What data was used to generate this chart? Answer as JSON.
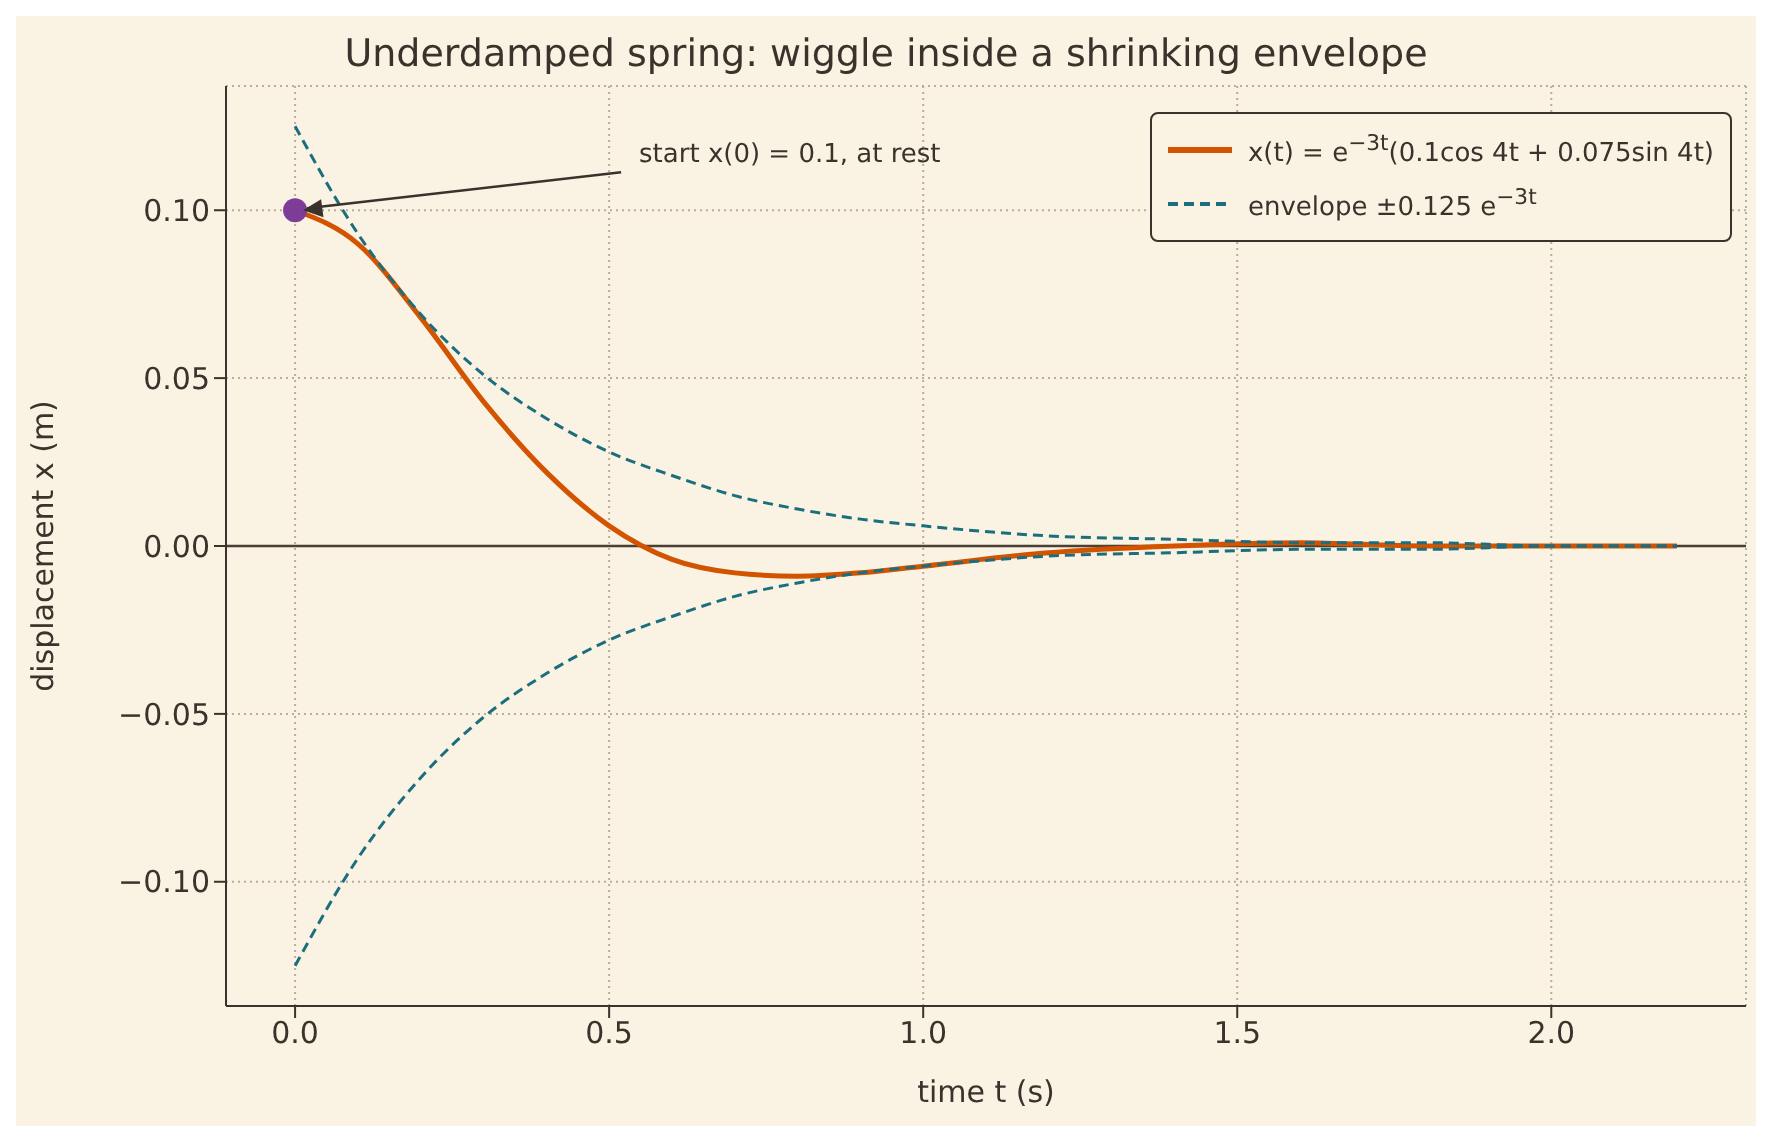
{
  "chart_data": {
    "type": "line",
    "title": "Underdamped spring: wiggle inside a shrinking envelope",
    "xlabel": "time  t  (s)",
    "ylabel": "displacement  x  (m)",
    "xlim": [
      -0.11,
      2.31
    ],
    "xticks": [
      {
        "value": 0,
        "label": "0.0"
      },
      {
        "value": 0.5,
        "label": "0.5"
      },
      {
        "value": 1,
        "label": "1.0"
      },
      {
        "value": 1.5,
        "label": "1.5"
      },
      {
        "value": 2,
        "label": "2.0"
      }
    ],
    "ylim": [
      -0.137,
      0.137
    ],
    "yticks": [
      {
        "value": -0.1,
        "label": "−0.10"
      },
      {
        "value": -0.05,
        "label": "−0.05"
      },
      {
        "value": 0,
        "label": "0.00"
      },
      {
        "value": 0.05,
        "label": "0.05"
      },
      {
        "value": 0.1,
        "label": "0.10"
      }
    ],
    "grid": true,
    "legend": "top right",
    "series": [
      {
        "name": "x(t) = e$^{−3t}$(0.1cos 4t + 0.075sin 4t)",
        "color": "#d35400",
        "line_style": "solid",
        "x": [
          0,
          0.1,
          0.2,
          0.3,
          0.4,
          0.5,
          0.6,
          0.7,
          0.8,
          0.9,
          1.0,
          1.2,
          1.4,
          1.6,
          1.8,
          2.0,
          2.2
        ],
        "values": [
          0.1,
          0.09,
          0.068,
          0.043,
          0.022,
          0.006,
          -0.004,
          -0.008,
          -0.009,
          -0.008,
          -0.006,
          -0.002,
          0.0,
          0.001,
          0.0,
          0.0,
          0.0
        ]
      },
      {
        "name": "envelope ±0.125 e$^{−3t}$",
        "color": "#1b6e7d",
        "line_style": "dashed",
        "x": [
          0,
          0.1,
          0.2,
          0.3,
          0.4,
          0.5,
          0.6,
          0.7,
          0.8,
          0.9,
          1.0,
          1.2,
          1.4,
          1.6,
          1.8,
          2.0,
          2.2
        ],
        "values": [
          0.125,
          0.093,
          0.069,
          0.051,
          0.038,
          0.028,
          0.021,
          0.015,
          0.011,
          0.008,
          0.006,
          0.003,
          0.002,
          0.001,
          0.001,
          0.0,
          0.0
        ]
      },
      {
        "color": "#1b6e7d",
        "line_style": "dashed",
        "x": [
          0,
          0.1,
          0.2,
          0.3,
          0.4,
          0.5,
          0.6,
          0.7,
          0.8,
          0.9,
          1.0,
          1.2,
          1.4,
          1.6,
          1.8,
          2.0,
          2.2
        ],
        "values": [
          -0.125,
          -0.093,
          -0.069,
          -0.051,
          -0.038,
          -0.028,
          -0.021,
          -0.015,
          -0.011,
          -0.008,
          -0.006,
          -0.003,
          -0.002,
          -0.001,
          -0.001,
          0.0,
          0.0
        ]
      },
      {
        "type": "scatter",
        "color": "#7d3c98",
        "marker": "circle",
        "x": [
          0
        ],
        "values": [
          0.1
        ]
      }
    ],
    "ref_lines": [
      {
        "axis": "y",
        "value": 0,
        "color": "#4a3f35",
        "line_style": "solid"
      }
    ],
    "annotations": [
      {
        "text": "start x(0) = 0.1, at rest",
        "x": 0,
        "y": 0.1
      }
    ]
  }
}
